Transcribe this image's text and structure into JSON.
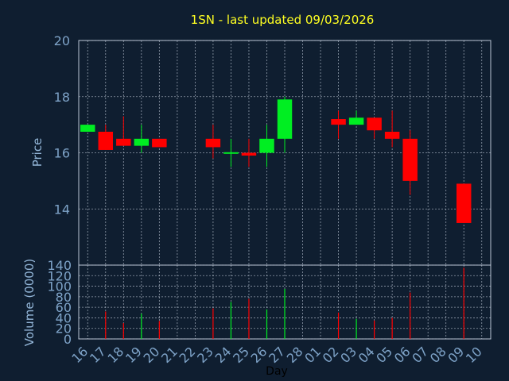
{
  "chart_data": {
    "type": "candlestick",
    "title": "1SN - last updated 09/03/2026",
    "xlabel": "Day",
    "ylabel_price": "Price",
    "ylabel_volume": "Volume (0000)",
    "price_ylim": [
      12.0,
      20.0
    ],
    "price_ticks": [
      14,
      16,
      18,
      20
    ],
    "volume_ylim": [
      0,
      140
    ],
    "volume_ticks": [
      0,
      20,
      40,
      60,
      80,
      100,
      120,
      140
    ],
    "grid": true,
    "x_labels": [
      "16",
      "17",
      "18",
      "19",
      "20",
      "21",
      "22",
      "23",
      "24",
      "25",
      "26",
      "27",
      "28",
      "01",
      "02",
      "03",
      "04",
      "05",
      "06",
      "07",
      "08",
      "09",
      "10"
    ],
    "candles": [
      {
        "day": "16",
        "open": 16.75,
        "close": 17.0,
        "high": 17.0,
        "low": 16.75,
        "volume": 0
      },
      {
        "day": "17",
        "open": 16.75,
        "close": 16.1,
        "high": 17.0,
        "low": 16.1,
        "volume": 52
      },
      {
        "day": "18",
        "open": 16.5,
        "close": 16.25,
        "high": 17.3,
        "low": 16.25,
        "volume": 30
      },
      {
        "day": "19",
        "open": 16.25,
        "close": 16.5,
        "high": 17.0,
        "low": 16.0,
        "volume": 48
      },
      {
        "day": "20",
        "open": 16.5,
        "close": 16.2,
        "high": 16.5,
        "low": 16.2,
        "volume": 34
      },
      {
        "day": "23",
        "open": 16.5,
        "close": 16.2,
        "high": 17.0,
        "low": 15.8,
        "volume": 58
      },
      {
        "day": "24",
        "open": 15.98,
        "close": 16.02,
        "high": 16.5,
        "low": 15.5,
        "volume": 70
      },
      {
        "day": "25",
        "open": 16.0,
        "close": 15.9,
        "high": 16.5,
        "low": 15.5,
        "volume": 76
      },
      {
        "day": "26",
        "open": 16.0,
        "close": 16.5,
        "high": 17.0,
        "low": 15.5,
        "volume": 56
      },
      {
        "day": "27",
        "open": 16.5,
        "close": 17.9,
        "high": 18.0,
        "low": 16.0,
        "volume": 95
      },
      {
        "day": "02",
        "open": 17.2,
        "close": 17.0,
        "high": 17.5,
        "low": 16.5,
        "volume": 50
      },
      {
        "day": "03",
        "open": 17.0,
        "close": 17.25,
        "high": 17.5,
        "low": 17.0,
        "volume": 38
      },
      {
        "day": "04",
        "open": 17.25,
        "close": 16.8,
        "high": 17.25,
        "low": 16.5,
        "volume": 35
      },
      {
        "day": "05",
        "open": 16.75,
        "close": 16.5,
        "high": 17.5,
        "low": 16.2,
        "volume": 40
      },
      {
        "day": "06",
        "open": 16.5,
        "close": 15.0,
        "high": 16.8,
        "low": 14.5,
        "volume": 88
      },
      {
        "day": "09",
        "open": 14.9,
        "close": 13.5,
        "high": 14.9,
        "low": 13.5,
        "volume": 135
      }
    ],
    "colors": {
      "background": "#0f1e30",
      "frame": "#b8c4d4",
      "grid": "#c8d2e0",
      "title": "#ffff22",
      "axis_text": "#7ea3c8",
      "label_text": "#93b6d8",
      "xlabel_text": "#000000",
      "up": "#00ee22",
      "down": "#ff0000"
    }
  }
}
